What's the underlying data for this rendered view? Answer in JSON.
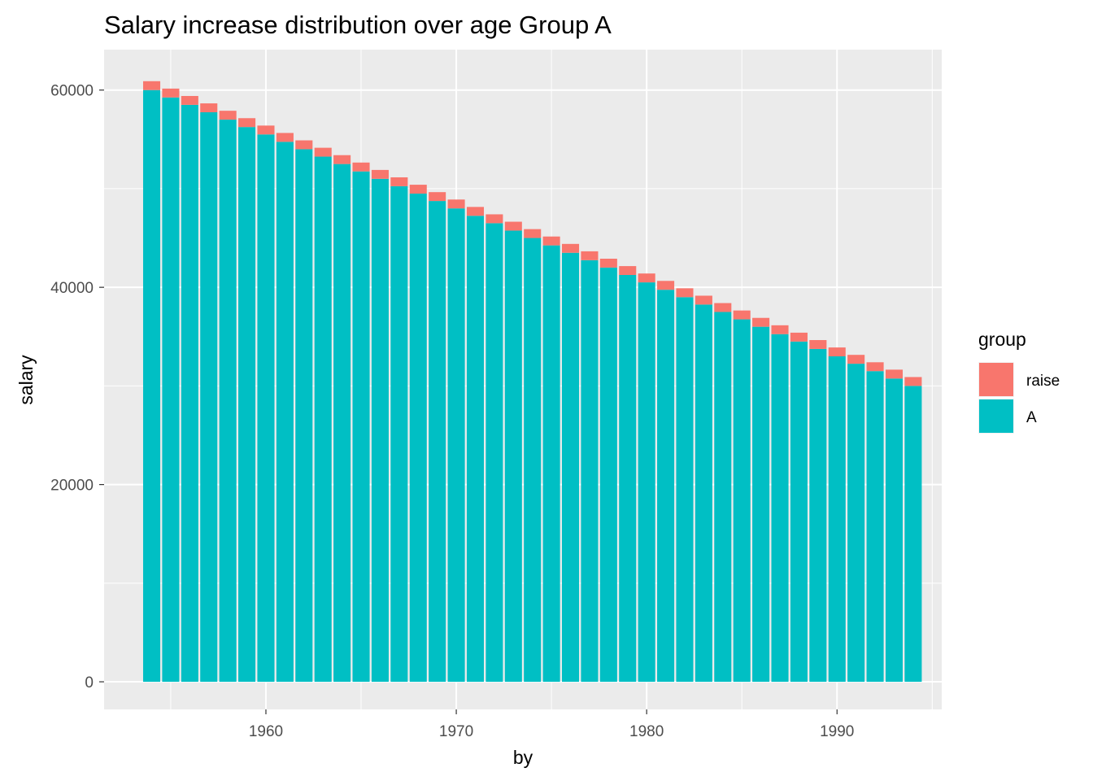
{
  "chart_data": {
    "type": "bar",
    "stacked": true,
    "title": "Salary increase distribution over age Group A",
    "xlabel": "by",
    "ylabel": "salary",
    "xlim": [
      1951.5,
      1995.5
    ],
    "ylim": [
      -2800,
      64100
    ],
    "x_ticks": [
      1960,
      1970,
      1980,
      1990
    ],
    "x_tick_labels": [
      "1960",
      "1970",
      "1980",
      "1990"
    ],
    "y_ticks": [
      0,
      20000,
      40000,
      60000
    ],
    "y_tick_labels": [
      "0",
      "20000",
      "40000",
      "60000"
    ],
    "x": [
      1954,
      1955,
      1956,
      1957,
      1958,
      1959,
      1960,
      1961,
      1962,
      1963,
      1964,
      1965,
      1966,
      1967,
      1968,
      1969,
      1970,
      1971,
      1972,
      1973,
      1974,
      1975,
      1976,
      1977,
      1978,
      1979,
      1980,
      1981,
      1982,
      1983,
      1984,
      1985,
      1986,
      1987,
      1988,
      1989,
      1990,
      1991,
      1992,
      1993,
      1994
    ],
    "series": [
      {
        "name": "A",
        "color": "#00BFC4",
        "values": [
          60000,
          59250,
          58500,
          57750,
          57000,
          56250,
          55500,
          54750,
          54000,
          53250,
          52500,
          51750,
          51000,
          50250,
          49500,
          48750,
          48000,
          47250,
          46500,
          45750,
          45000,
          44250,
          43500,
          42750,
          42000,
          41250,
          40500,
          39750,
          39000,
          38250,
          37500,
          36750,
          36000,
          35250,
          34500,
          33750,
          33000,
          32250,
          31500,
          30750,
          30000
        ]
      },
      {
        "name": "raise",
        "color": "#F8766D",
        "values": [
          900,
          900,
          900,
          900,
          900,
          900,
          900,
          900,
          900,
          900,
          900,
          900,
          900,
          900,
          900,
          900,
          900,
          900,
          900,
          900,
          900,
          900,
          900,
          900,
          900,
          900,
          900,
          900,
          900,
          900,
          900,
          900,
          900,
          900,
          900,
          900,
          900,
          900,
          900,
          900,
          900
        ]
      }
    ],
    "legend": {
      "title": "group",
      "position": "right",
      "items": [
        {
          "label": "raise",
          "color": "#F8766D"
        },
        {
          "label": "A",
          "color": "#00BFC4"
        }
      ]
    },
    "grid": true,
    "panel_background": "#EBEBEB",
    "grid_color": "#FFFFFF"
  }
}
